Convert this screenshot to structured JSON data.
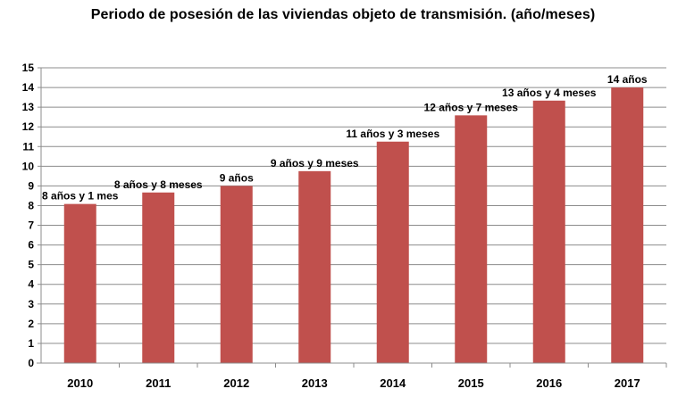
{
  "chart_data": {
    "type": "bar",
    "title": "Periodo de posesión de las viviendas objeto de transmisión. (año/meses)",
    "categories": [
      "2010",
      "2011",
      "2012",
      "2013",
      "2014",
      "2015",
      "2016",
      "2017"
    ],
    "values": [
      8.0833,
      8.6667,
      9.0,
      9.75,
      11.25,
      12.5833,
      13.3333,
      14.0
    ],
    "data_labels": [
      "8 años y 1 mes",
      "8 años y 8 meses",
      "9 años",
      "9 años y 9 meses",
      "11 años y 3 meses",
      "12 años y 7 meses",
      "13 años y 4 meses",
      "14 años"
    ],
    "y_ticks": [
      "0",
      "1",
      "2",
      "3",
      "4",
      "5",
      "6",
      "7",
      "8",
      "9",
      "10",
      "11",
      "12",
      "13",
      "14",
      "15"
    ],
    "ylim": [
      0,
      15
    ],
    "xlabel": "",
    "ylabel": "",
    "grid": true,
    "bar_color": "#C0504D",
    "grid_color": "#8C8C8C"
  }
}
